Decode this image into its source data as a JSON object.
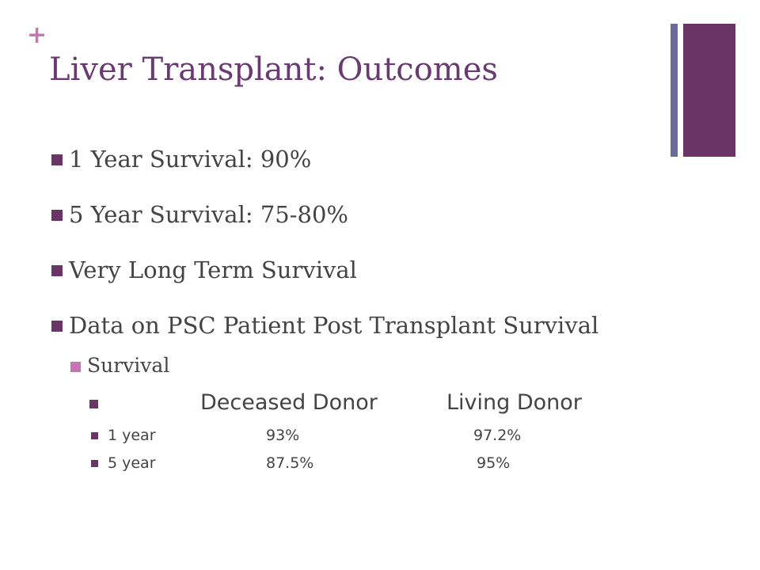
{
  "slide": {
    "plus_glyph": "+",
    "title": "Liver Transplant:  Outcomes",
    "accent_colors": {
      "plus": "#c675b4",
      "title": "#6a3a72",
      "bar_thin": "#6b6a9c",
      "bar_thick": "#6a3466",
      "bullet_primary": "#6a3466",
      "bullet_secondary": "#c675b4"
    }
  },
  "bullets": [
    {
      "text": "1 Year Survival:  90%"
    },
    {
      "text": "5 Year Survival:  75-80%"
    },
    {
      "text": "Very Long Term Survival"
    },
    {
      "text": "Data on PSC Patient Post Transplant Survival"
    }
  ],
  "sub_bullet": {
    "text": "Survival"
  },
  "survival_table": {
    "columns": [
      "",
      "Deceased Donor",
      "Living Donor"
    ],
    "rows": [
      {
        "label": "1 year",
        "deceased": "93%",
        "living": "97.2%"
      },
      {
        "label": "5 year",
        "deceased": "87.5%",
        "living": "95%"
      }
    ]
  }
}
